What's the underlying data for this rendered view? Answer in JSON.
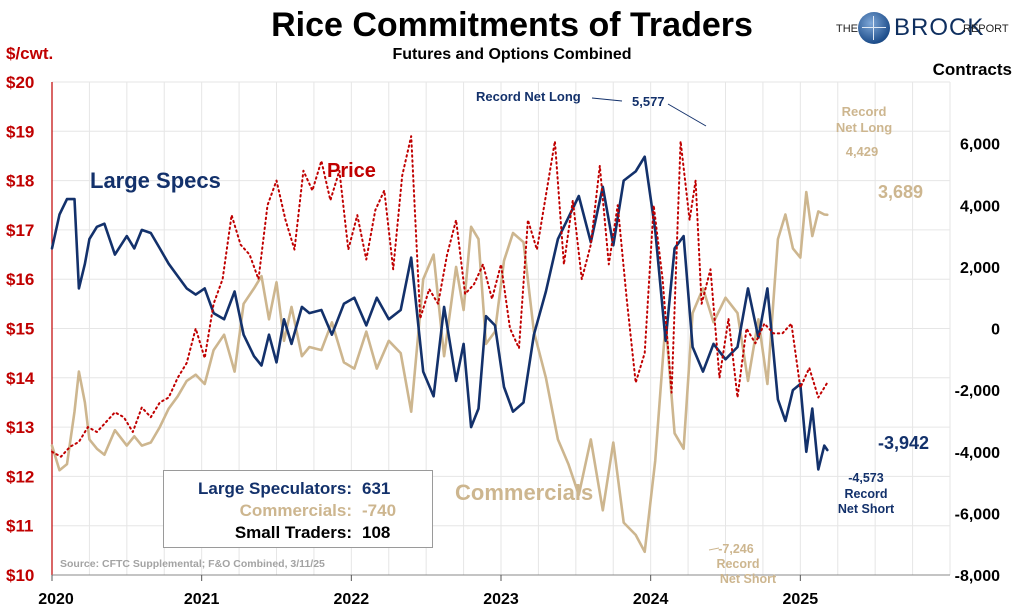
{
  "header": {
    "title": "Rice Commitments of Traders",
    "subtitle": "Futures and Options Combined"
  },
  "logo": {
    "prefix": "THE",
    "brand": "BROCK",
    "suffix": "REPORT"
  },
  "axes": {
    "left_unit": "$/cwt.",
    "right_unit": "Contracts"
  },
  "colors": {
    "large_specs": "#13316b",
    "commercials": "#cdb68f",
    "price": "#c00000",
    "grid": "#e6e6e6",
    "small_traders": "#000000"
  },
  "legend_box": {
    "rows": [
      {
        "label": "Large Speculators:",
        "value": "631",
        "color": "#13316b"
      },
      {
        "label": "Commercials:",
        "value": "-740",
        "color": "#cdb68f"
      },
      {
        "label": "Small Traders:",
        "value": "108",
        "color": "#000000"
      }
    ]
  },
  "source": "Source: CFTC Supplemental; F&O Combined, 3/11/25",
  "chart_data": {
    "type": "line",
    "x_range": [
      2020.0,
      2026.0
    ],
    "x_ticks": [
      2020,
      2021,
      2022,
      2023,
      2024,
      2025
    ],
    "x_tick_labels": [
      "2020",
      "2021",
      "2022",
      "2023",
      "2024",
      "2025"
    ],
    "y_left": {
      "unit": "$/cwt.",
      "range": [
        10,
        20
      ],
      "ticks": [
        10,
        11,
        12,
        13,
        14,
        15,
        16,
        17,
        18,
        19,
        20
      ],
      "tick_labels": [
        "$10",
        "$11",
        "$12",
        "$13",
        "$14",
        "$15",
        "$16",
        "$17",
        "$18",
        "$19",
        "$20"
      ]
    },
    "y_right": {
      "unit": "Contracts",
      "range": [
        -8000,
        8000
      ],
      "ticks": [
        -8000,
        -6000,
        -4000,
        -2000,
        0,
        2000,
        4000,
        6000
      ],
      "tick_labels": [
        "-8,000",
        "-6,000",
        "-4,000",
        "-2,000",
        "0",
        "2,000",
        "4,000",
        "6,000"
      ]
    },
    "grid": true,
    "series": [
      {
        "name": "Large Specs",
        "axis": "right",
        "style": "solid",
        "color": "#13316b",
        "x": [
          2020.0,
          2020.05,
          2020.1,
          2020.15,
          2020.18,
          2020.22,
          2020.25,
          2020.3,
          2020.35,
          2020.42,
          2020.5,
          2020.55,
          2020.6,
          2020.66,
          2020.72,
          2020.78,
          2020.84,
          2020.9,
          2020.96,
          2021.02,
          2021.08,
          2021.15,
          2021.22,
          2021.28,
          2021.35,
          2021.4,
          2021.45,
          2021.5,
          2021.55,
          2021.6,
          2021.67,
          2021.72,
          2021.8,
          2021.87,
          2021.95,
          2022.02,
          2022.1,
          2022.17,
          2022.25,
          2022.33,
          2022.4,
          2022.48,
          2022.55,
          2022.62,
          2022.7,
          2022.75,
          2022.8,
          2022.85,
          2022.9,
          2022.96,
          2023.02,
          2023.08,
          2023.15,
          2023.22,
          2023.3,
          2023.38,
          2023.45,
          2023.52,
          2023.6,
          2023.68,
          2023.75,
          2023.82,
          2023.9,
          2023.96,
          2024.03,
          2024.1,
          2024.16,
          2024.22,
          2024.28,
          2024.35,
          2024.42,
          2024.5,
          2024.58,
          2024.65,
          2024.72,
          2024.78,
          2024.85,
          2024.9,
          2024.95,
          2025.0,
          2025.04,
          2025.08,
          2025.12,
          2025.16,
          2025.18
        ],
        "y": [
          2600,
          3700,
          4200,
          4200,
          1300,
          2100,
          2900,
          3300,
          3400,
          2400,
          3000,
          2600,
          3200,
          3100,
          2600,
          2100,
          1700,
          1300,
          1100,
          1300,
          500,
          300,
          1200,
          -200,
          -900,
          -1200,
          -200,
          -1100,
          300,
          -500,
          700,
          500,
          600,
          -200,
          800,
          1000,
          100,
          1000,
          300,
          600,
          2300,
          -1400,
          -2200,
          700,
          -1700,
          -500,
          -3200,
          -2600,
          400,
          100,
          -1900,
          -2700,
          -2400,
          -200,
          1200,
          2900,
          3600,
          4300,
          2800,
          4600,
          2700,
          4800,
          5100,
          5577,
          3200,
          -400,
          2600,
          3000,
          -600,
          -1400,
          -500,
          -1000,
          -600,
          1300,
          -300,
          1300,
          -2300,
          -3000,
          -2000,
          -1800,
          -4000,
          -2600,
          -4573,
          -3800,
          -3942
        ]
      },
      {
        "name": "Commercials",
        "axis": "right",
        "style": "solid",
        "color": "#cdb68f",
        "x": [
          2020.0,
          2020.05,
          2020.1,
          2020.15,
          2020.18,
          2020.22,
          2020.25,
          2020.3,
          2020.35,
          2020.42,
          2020.5,
          2020.55,
          2020.6,
          2020.66,
          2020.72,
          2020.78,
          2020.84,
          2020.9,
          2020.96,
          2021.02,
          2021.08,
          2021.15,
          2021.22,
          2021.28,
          2021.35,
          2021.4,
          2021.45,
          2021.5,
          2021.55,
          2021.6,
          2021.67,
          2021.72,
          2021.8,
          2021.87,
          2021.95,
          2022.02,
          2022.1,
          2022.17,
          2022.25,
          2022.33,
          2022.4,
          2022.48,
          2022.55,
          2022.62,
          2022.7,
          2022.75,
          2022.8,
          2022.85,
          2022.9,
          2022.96,
          2023.02,
          2023.08,
          2023.15,
          2023.22,
          2023.3,
          2023.38,
          2023.45,
          2023.52,
          2023.6,
          2023.68,
          2023.75,
          2023.82,
          2023.9,
          2023.96,
          2024.03,
          2024.1,
          2024.16,
          2024.22,
          2024.28,
          2024.35,
          2024.42,
          2024.5,
          2024.58,
          2024.65,
          2024.72,
          2024.78,
          2024.85,
          2024.9,
          2024.95,
          2025.0,
          2025.04,
          2025.08,
          2025.12,
          2025.16,
          2025.18
        ],
        "y": [
          -3800,
          -4600,
          -4400,
          -2700,
          -1400,
          -2400,
          -3600,
          -3900,
          -4100,
          -3300,
          -3800,
          -3500,
          -3800,
          -3700,
          -3200,
          -2600,
          -2200,
          -1700,
          -1500,
          -1800,
          -700,
          -200,
          -1400,
          800,
          1300,
          1700,
          300,
          1500,
          -400,
          700,
          -900,
          -600,
          -700,
          200,
          -1100,
          -1300,
          -100,
          -1300,
          -400,
          -800,
          -2700,
          1600,
          2400,
          -900,
          2000,
          600,
          3300,
          2900,
          -500,
          -100,
          2200,
          3100,
          2800,
          -100,
          -1600,
          -3600,
          -4400,
          -5400,
          -3600,
          -5900,
          -3700,
          -6300,
          -6700,
          -7246,
          -4300,
          200,
          -3400,
          -3900,
          500,
          1300,
          200,
          1000,
          500,
          -1700,
          300,
          -1800,
          2900,
          3700,
          2600,
          2300,
          4429,
          3000,
          3800,
          3700,
          3689
        ]
      },
      {
        "name": "Price",
        "axis": "left",
        "style": "dotted",
        "color": "#c00000",
        "x": [
          2020.0,
          2020.06,
          2020.12,
          2020.18,
          2020.24,
          2020.3,
          2020.36,
          2020.42,
          2020.48,
          2020.54,
          2020.6,
          2020.66,
          2020.72,
          2020.78,
          2020.84,
          2020.9,
          2020.96,
          2021.02,
          2021.08,
          2021.14,
          2021.2,
          2021.26,
          2021.32,
          2021.38,
          2021.44,
          2021.5,
          2021.56,
          2021.62,
          2021.68,
          2021.74,
          2021.8,
          2021.86,
          2021.92,
          2021.98,
          2022.04,
          2022.1,
          2022.16,
          2022.22,
          2022.28,
          2022.34,
          2022.4,
          2022.46,
          2022.52,
          2022.58,
          2022.64,
          2022.7,
          2022.76,
          2022.82,
          2022.88,
          2022.94,
          2023.0,
          2023.06,
          2023.12,
          2023.18,
          2023.24,
          2023.3,
          2023.36,
          2023.42,
          2023.48,
          2023.54,
          2023.6,
          2023.66,
          2023.72,
          2023.78,
          2023.84,
          2023.9,
          2023.96,
          2024.02,
          2024.08,
          2024.14,
          2024.2,
          2024.26,
          2024.3,
          2024.34,
          2024.4,
          2024.46,
          2024.52,
          2024.58,
          2024.64,
          2024.7,
          2024.76,
          2024.82,
          2024.88,
          2024.94,
          2025.0,
          2025.06,
          2025.12,
          2025.18
        ],
        "y": [
          12.5,
          12.4,
          12.6,
          12.7,
          13.0,
          12.9,
          13.1,
          13.3,
          13.2,
          12.9,
          13.4,
          13.2,
          13.5,
          13.6,
          14.0,
          14.3,
          15.0,
          14.4,
          15.5,
          16.0,
          17.3,
          16.7,
          16.5,
          16.0,
          17.5,
          18.0,
          17.2,
          16.6,
          18.2,
          17.8,
          18.4,
          17.6,
          18.2,
          16.6,
          17.3,
          16.4,
          17.4,
          17.8,
          16.2,
          18.1,
          18.9,
          15.2,
          15.8,
          15.5,
          16.5,
          17.2,
          15.7,
          15.9,
          16.3,
          15.6,
          16.3,
          15.0,
          14.6,
          17.2,
          16.6,
          17.7,
          18.8,
          16.3,
          17.6,
          16.0,
          16.7,
          18.3,
          16.3,
          17.5,
          15.6,
          13.9,
          14.5,
          17.5,
          16.0,
          13.7,
          18.8,
          17.2,
          18.0,
          15.5,
          16.2,
          14.0,
          15.2,
          13.6,
          15.0,
          14.7,
          15.1,
          14.9,
          14.9,
          15.1,
          13.8,
          14.2,
          13.6,
          13.9
        ]
      }
    ],
    "annotations": [
      {
        "text": "Large Specs",
        "color": "#13316b"
      },
      {
        "text": "Price",
        "color": "#c00000"
      },
      {
        "text": "Commercials",
        "color": "#cdb68f"
      },
      {
        "text": "Record Net Long",
        "color": "#13316b"
      },
      {
        "text": "5,577",
        "color": "#13316b"
      },
      {
        "text": "Record",
        "color": "#cdb68f"
      },
      {
        "text": "Net Long",
        "color": "#cdb68f"
      },
      {
        "text": "4,429",
        "color": "#cdb68f"
      },
      {
        "text": "3,689",
        "color": "#cdb68f"
      },
      {
        "text": "-3,942",
        "color": "#13316b"
      },
      {
        "text": "-4,573",
        "color": "#13316b"
      },
      {
        "text": "Record",
        "color": "#13316b"
      },
      {
        "text": "Net Short",
        "color": "#13316b"
      },
      {
        "text": "-7,246",
        "color": "#cdb68f"
      },
      {
        "text": "Record",
        "color": "#cdb68f"
      },
      {
        "text": "Net Short",
        "color": "#cdb68f"
      }
    ]
  }
}
